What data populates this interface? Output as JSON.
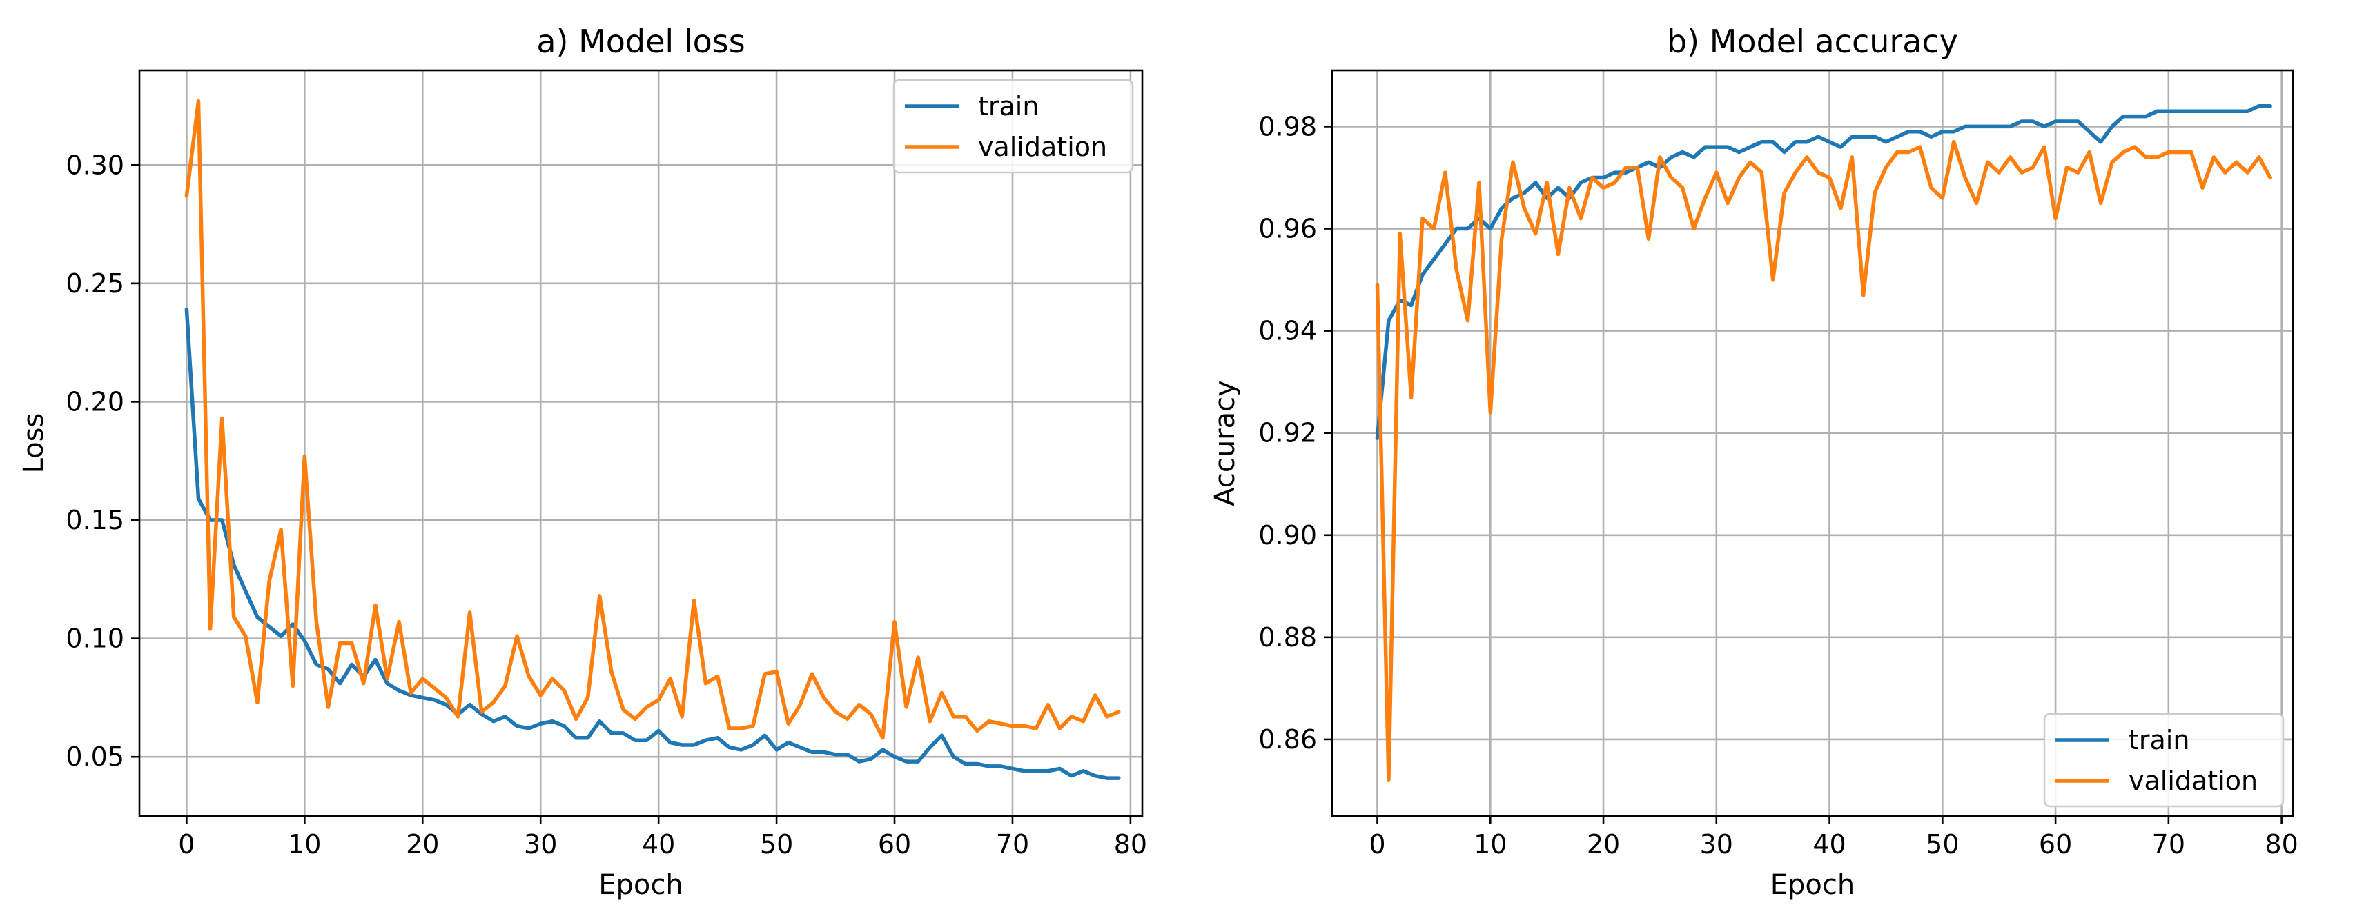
{
  "colors": {
    "train": "#1f77b4",
    "validation": "#ff7f0e"
  },
  "chart_data": [
    {
      "type": "line",
      "title": "a) Model loss",
      "xlabel": "Epoch",
      "ylabel": "Loss",
      "xlim": [
        -4,
        81
      ],
      "ylim": [
        0.025,
        0.34
      ],
      "xticks": [
        0,
        10,
        20,
        30,
        40,
        50,
        60,
        70,
        80
      ],
      "yticks": [
        0.05,
        0.1,
        0.15,
        0.2,
        0.25,
        0.3
      ],
      "ytick_labels": [
        "0.05",
        "0.10",
        "0.15",
        "0.20",
        "0.25",
        "0.30"
      ],
      "grid": true,
      "legend_position": "top-right",
      "series": [
        {
          "name": "train",
          "values": [
            0.239,
            0.159,
            0.15,
            0.15,
            0.131,
            0.12,
            0.109,
            0.105,
            0.101,
            0.106,
            0.099,
            0.089,
            0.087,
            0.081,
            0.089,
            0.084,
            0.091,
            0.081,
            0.078,
            0.076,
            0.075,
            0.074,
            0.072,
            0.068,
            0.072,
            0.068,
            0.065,
            0.067,
            0.063,
            0.062,
            0.064,
            0.065,
            0.063,
            0.058,
            0.058,
            0.065,
            0.06,
            0.06,
            0.057,
            0.057,
            0.061,
            0.056,
            0.055,
            0.055,
            0.057,
            0.058,
            0.054,
            0.053,
            0.055,
            0.059,
            0.053,
            0.056,
            0.054,
            0.052,
            0.052,
            0.051,
            0.051,
            0.048,
            0.049,
            0.053,
            0.05,
            0.048,
            0.048,
            0.054,
            0.059,
            0.05,
            0.047,
            0.047,
            0.046,
            0.046,
            0.045,
            0.044,
            0.044,
            0.044,
            0.045,
            0.042,
            0.044,
            0.042,
            0.041,
            0.041
          ]
        },
        {
          "name": "validation",
          "values": [
            0.287,
            0.327,
            0.104,
            0.193,
            0.109,
            0.101,
            0.073,
            0.124,
            0.146,
            0.08,
            0.177,
            0.107,
            0.071,
            0.098,
            0.098,
            0.081,
            0.114,
            0.083,
            0.107,
            0.077,
            0.083,
            0.079,
            0.075,
            0.067,
            0.111,
            0.069,
            0.073,
            0.08,
            0.101,
            0.084,
            0.076,
            0.083,
            0.078,
            0.066,
            0.075,
            0.118,
            0.086,
            0.07,
            0.066,
            0.071,
            0.074,
            0.083,
            0.067,
            0.116,
            0.081,
            0.084,
            0.062,
            0.062,
            0.063,
            0.085,
            0.086,
            0.064,
            0.072,
            0.085,
            0.075,
            0.069,
            0.066,
            0.072,
            0.068,
            0.058,
            0.107,
            0.071,
            0.092,
            0.065,
            0.077,
            0.067,
            0.067,
            0.061,
            0.065,
            0.064,
            0.063,
            0.063,
            0.062,
            0.072,
            0.062,
            0.067,
            0.065,
            0.076,
            0.067,
            0.069
          ]
        }
      ]
    },
    {
      "type": "line",
      "title": "b) Model accuracy",
      "xlabel": "Epoch",
      "ylabel": "Accuracy",
      "xlim": [
        -4,
        81
      ],
      "ylim": [
        0.845,
        0.991
      ],
      "xticks": [
        0,
        10,
        20,
        30,
        40,
        50,
        60,
        70,
        80
      ],
      "yticks": [
        0.86,
        0.88,
        0.9,
        0.92,
        0.94,
        0.96,
        0.98
      ],
      "ytick_labels": [
        "0.86",
        "0.88",
        "0.90",
        "0.92",
        "0.94",
        "0.96",
        "0.98"
      ],
      "grid": true,
      "legend_position": "bottom-right",
      "series": [
        {
          "name": "train",
          "values": [
            0.919,
            0.942,
            0.946,
            0.945,
            0.951,
            0.954,
            0.957,
            0.96,
            0.96,
            0.962,
            0.96,
            0.964,
            0.966,
            0.967,
            0.969,
            0.966,
            0.968,
            0.966,
            0.969,
            0.97,
            0.97,
            0.971,
            0.971,
            0.972,
            0.973,
            0.972,
            0.974,
            0.975,
            0.974,
            0.976,
            0.976,
            0.976,
            0.975,
            0.976,
            0.977,
            0.977,
            0.975,
            0.977,
            0.977,
            0.978,
            0.977,
            0.976,
            0.978,
            0.978,
            0.978,
            0.977,
            0.978,
            0.979,
            0.979,
            0.978,
            0.979,
            0.979,
            0.98,
            0.98,
            0.98,
            0.98,
            0.98,
            0.981,
            0.981,
            0.98,
            0.981,
            0.981,
            0.981,
            0.979,
            0.977,
            0.98,
            0.982,
            0.982,
            0.982,
            0.983,
            0.983,
            0.983,
            0.983,
            0.983,
            0.983,
            0.983,
            0.983,
            0.983,
            0.984,
            0.984
          ]
        },
        {
          "name": "validation",
          "values": [
            0.949,
            0.852,
            0.959,
            0.927,
            0.962,
            0.96,
            0.971,
            0.952,
            0.942,
            0.969,
            0.924,
            0.958,
            0.973,
            0.964,
            0.959,
            0.969,
            0.955,
            0.968,
            0.962,
            0.97,
            0.968,
            0.969,
            0.972,
            0.972,
            0.958,
            0.974,
            0.97,
            0.968,
            0.96,
            0.966,
            0.971,
            0.965,
            0.97,
            0.973,
            0.971,
            0.95,
            0.967,
            0.971,
            0.974,
            0.971,
            0.97,
            0.964,
            0.974,
            0.947,
            0.967,
            0.972,
            0.975,
            0.975,
            0.976,
            0.968,
            0.966,
            0.977,
            0.97,
            0.965,
            0.973,
            0.971,
            0.974,
            0.971,
            0.972,
            0.976,
            0.962,
            0.972,
            0.971,
            0.975,
            0.965,
            0.973,
            0.975,
            0.976,
            0.974,
            0.974,
            0.975,
            0.975,
            0.975,
            0.968,
            0.974,
            0.971,
            0.973,
            0.971,
            0.974,
            0.97
          ]
        }
      ]
    }
  ]
}
